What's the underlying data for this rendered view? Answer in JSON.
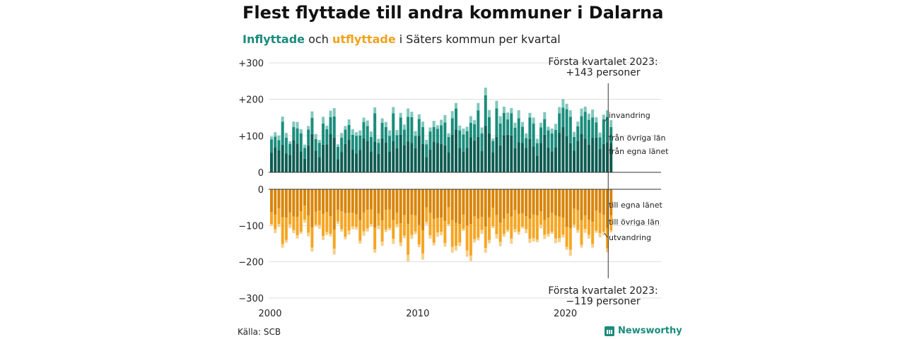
{
  "title": "Flest flyttade till andra kommuner i Dalarna",
  "subtitle": {
    "in_word": "Inflyttade",
    "and_word": " och ",
    "out_word": "utflyttade",
    "rest": " i Säters kommun per kvartal"
  },
  "source": "Källa: SCB",
  "brand": "Newsworthy",
  "colors": {
    "in_egna": "#0d5c52",
    "in_ovriga": "#1a8c7c",
    "in_invandring": "#7fc8bc",
    "out_egna": "#d9850a",
    "out_ovriga": "#f5a623",
    "out_utvandring": "#f7cf8a",
    "grid": "#dddddd",
    "axis": "#333333"
  },
  "chart_data": {
    "type": "bar",
    "stacked": true,
    "x_start_year": 2000,
    "quarters": 93,
    "xticks": [
      "2000",
      "2010",
      "2020"
    ],
    "yticks_top": [
      "+300",
      "+200",
      "+100",
      "0"
    ],
    "yticks_bottom": [
      "0",
      "−100",
      "−200",
      "−300"
    ],
    "ylim_top": [
      0,
      300
    ],
    "ylim_bottom": [
      -300,
      0
    ],
    "series_labels_in": [
      "invandring",
      "från övriga län",
      "från egna länet"
    ],
    "series_labels_out": [
      "till egna länet",
      "till övriga län",
      "utvandring"
    ],
    "annotation_top": [
      "Första kvartalet 2023:",
      "+143 personer"
    ],
    "annotation_bottom": [
      "Första kvartalet 2023:",
      "−119 personer"
    ],
    "inflows": [
      98,
      110,
      101,
      153,
      108,
      85,
      139,
      138,
      118,
      76,
      127,
      167,
      105,
      89,
      152,
      128,
      169,
      176,
      77,
      108,
      127,
      145,
      118,
      110,
      115,
      150,
      142,
      112,
      178,
      92,
      148,
      138,
      115,
      179,
      116,
      163,
      131,
      175,
      166,
      113,
      159,
      139,
      89,
      123,
      141,
      129,
      144,
      157,
      107,
      168,
      190,
      128,
      120,
      125,
      154,
      143,
      190,
      123,
      232,
      171,
      93,
      196,
      154,
      180,
      164,
      176,
      136,
      170,
      138,
      107,
      163,
      150,
      92,
      136,
      165,
      125,
      120,
      133,
      179,
      201,
      188,
      170,
      111,
      139,
      175,
      180,
      161,
      172,
      151,
      109,
      158,
      170,
      143
    ],
    "outflows": [
      -101,
      -121,
      -104,
      -161,
      -147,
      -107,
      -121,
      -136,
      -123,
      -92,
      -130,
      -172,
      -103,
      -109,
      -140,
      -126,
      -130,
      -180,
      -96,
      -117,
      -138,
      -125,
      -110,
      -111,
      -150,
      -128,
      -117,
      -103,
      -175,
      -110,
      -156,
      -118,
      -113,
      -151,
      -105,
      -157,
      -135,
      -199,
      -137,
      -124,
      -160,
      -194,
      -98,
      -136,
      -155,
      -131,
      -127,
      -158,
      -101,
      -175,
      -169,
      -157,
      -115,
      -186,
      -198,
      -147,
      -141,
      -123,
      -175,
      -149,
      -107,
      -136,
      -157,
      -131,
      -118,
      -150,
      -119,
      -125,
      -108,
      -121,
      -148,
      -144,
      -146,
      -108,
      -137,
      -131,
      -123,
      -149,
      -146,
      -133,
      -167,
      -184,
      -106,
      -120,
      -161,
      -120,
      -136,
      -161,
      -120,
      -133,
      -127,
      -174,
      -119
    ]
  }
}
